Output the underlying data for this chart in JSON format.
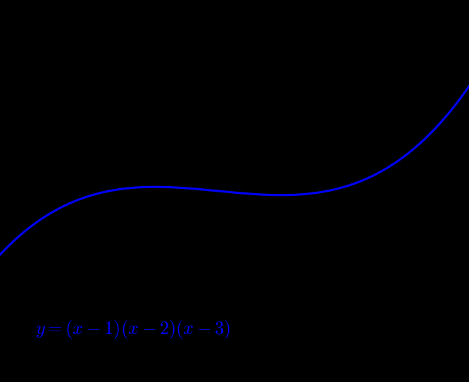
{
  "background_color": "#000000",
  "line_color": "#0000ff",
  "line_width": 2.2,
  "x_min": 0.0,
  "x_max": 4.3,
  "y_min": -18,
  "y_max": 18,
  "equation_text": "$y = (x-1)(x-2)(x-3)$",
  "equation_x": 0.32,
  "equation_y": -13.5,
  "equation_fontsize": 19,
  "equation_color": "#0000ff",
  "figsize": [
    6.66,
    5.42
  ],
  "dpi": 100
}
